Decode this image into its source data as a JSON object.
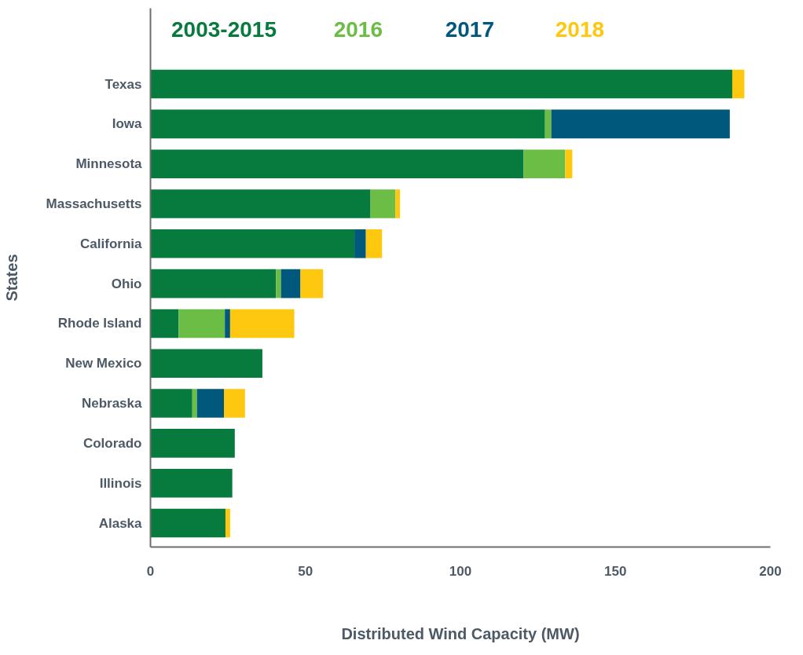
{
  "chart_data": {
    "type": "bar",
    "orientation": "horizontal",
    "stacked": true,
    "categories": [
      "Texas",
      "Iowa",
      "Minnesota",
      "Massachusetts",
      "California",
      "Ohio",
      "Rhode Island",
      "New Mexico",
      "Nebraska",
      "Colorado",
      "Illinois",
      "Alaska"
    ],
    "series": [
      {
        "name": "2003-2015",
        "color": "#077a3d",
        "values": [
          187.7,
          127.3,
          120.4,
          71.0,
          65.8,
          40.5,
          9.1,
          36.1,
          13.5,
          27.2,
          26.4,
          24.2
        ]
      },
      {
        "name": "2016",
        "color": "#6cbd45",
        "values": [
          0,
          2.0,
          13.4,
          8.0,
          0,
          1.6,
          14.9,
          0,
          1.5,
          0,
          0,
          0
        ]
      },
      {
        "name": "2017",
        "color": "#00587c",
        "values": [
          0,
          57.6,
          0,
          0,
          3.7,
          6.3,
          1.7,
          0,
          8.7,
          0,
          0,
          0
        ]
      },
      {
        "name": "2018",
        "color": "#fdc80f",
        "values": [
          3.9,
          0,
          2.3,
          1.5,
          5.2,
          7.3,
          20.7,
          0,
          6.8,
          0,
          0,
          1.5
        ]
      }
    ],
    "xlim": [
      0,
      200
    ],
    "xticks": [
      0,
      50,
      100,
      150,
      200
    ],
    "xlabel": "Distributed Wind Capacity (MW)",
    "ylabel": "States",
    "grid": false,
    "legend": "top"
  }
}
